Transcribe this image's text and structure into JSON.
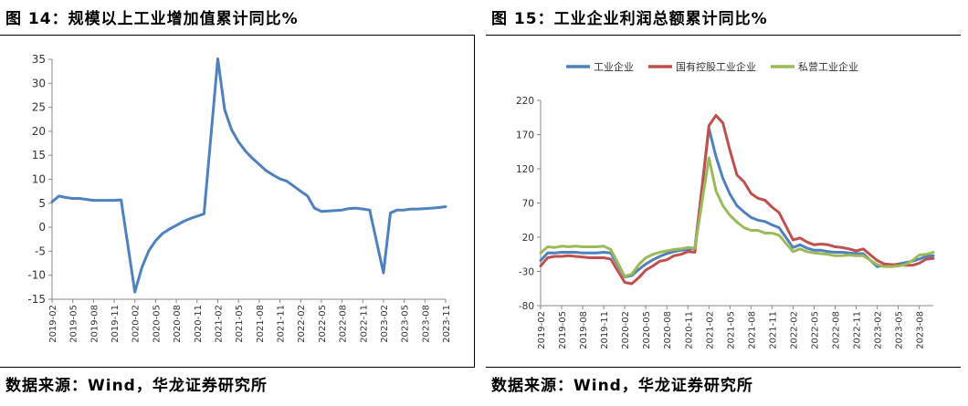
{
  "left": {
    "title": "图 14：规模以上工业增加值累计同比%",
    "source": "数据来源：Wind，华龙证券研究所",
    "chart_data": {
      "type": "line",
      "ylim": [
        -15,
        35
      ],
      "yticks": [
        -15,
        -10,
        -5,
        0,
        5,
        10,
        15,
        20,
        25,
        30,
        35
      ],
      "x_tick_labels": [
        "2019-02",
        "2019-05",
        "2019-08",
        "2019-11",
        "2020-02",
        "2020-05",
        "2020-08",
        "2020-11",
        "2021-02",
        "2021-05",
        "2021-08",
        "2021-11",
        "2022-02",
        "2022-05",
        "2022-08",
        "2022-11",
        "2023-02",
        "2023-05",
        "2023-08",
        "2023-11"
      ],
      "series": [
        {
          "color": "#4f81bd",
          "x": [
            "2019-02",
            "2019-03",
            "2019-04",
            "2019-05",
            "2019-06",
            "2019-07",
            "2019-08",
            "2019-09",
            "2019-10",
            "2019-11",
            "2019-12",
            "2020-02",
            "2020-03",
            "2020-04",
            "2020-05",
            "2020-06",
            "2020-07",
            "2020-08",
            "2020-09",
            "2020-10",
            "2020-11",
            "2020-12",
            "2021-02",
            "2021-03",
            "2021-04",
            "2021-05",
            "2021-06",
            "2021-07",
            "2021-08",
            "2021-09",
            "2021-10",
            "2021-11",
            "2021-12",
            "2022-02",
            "2022-03",
            "2022-04",
            "2022-05",
            "2022-06",
            "2022-07",
            "2022-08",
            "2022-09",
            "2022-10",
            "2022-11",
            "2022-12",
            "2023-02",
            "2023-03",
            "2023-04",
            "2023-05",
            "2023-06",
            "2023-07",
            "2023-08",
            "2023-09",
            "2023-10",
            "2023-11"
          ],
          "values": [
            5.3,
            6.5,
            6.2,
            6.0,
            6.0,
            5.8,
            5.6,
            5.6,
            5.6,
            5.6,
            5.7,
            -13.5,
            -8.4,
            -4.9,
            -2.8,
            -1.3,
            -0.4,
            0.4,
            1.2,
            1.8,
            2.3,
            2.8,
            35.1,
            24.5,
            20.3,
            17.8,
            15.9,
            14.4,
            13.1,
            11.8,
            10.9,
            10.1,
            9.6,
            7.5,
            6.5,
            4.0,
            3.3,
            3.4,
            3.5,
            3.6,
            3.9,
            4.0,
            3.8,
            3.6,
            -9.5,
            3.0,
            3.6,
            3.6,
            3.8,
            3.8,
            3.9,
            4.0,
            4.1,
            4.3
          ]
        }
      ]
    }
  },
  "right": {
    "title": "图 15：工业企业利润总额累计同比%",
    "source": "数据来源：Wind，华龙证券研究所",
    "chart_data": {
      "type": "line",
      "ylim": [
        -80,
        220
      ],
      "yticks": [
        -80,
        -30,
        20,
        70,
        120,
        170,
        220
      ],
      "legend_position": "top",
      "x_tick_labels": [
        "2019-02",
        "2019-05",
        "2019-08",
        "2019-11",
        "2020-02",
        "2020-05",
        "2020-08",
        "2020-11",
        "2021-02",
        "2021-05",
        "2021-08",
        "2021-11",
        "2022-02",
        "2022-05",
        "2022-08",
        "2022-11",
        "2023-02",
        "2023-05",
        "2023-08"
      ],
      "x": [
        "2019-02",
        "2019-03",
        "2019-04",
        "2019-05",
        "2019-06",
        "2019-07",
        "2019-08",
        "2019-09",
        "2019-10",
        "2019-11",
        "2019-12",
        "2020-02",
        "2020-03",
        "2020-04",
        "2020-05",
        "2020-06",
        "2020-07",
        "2020-08",
        "2020-09",
        "2020-10",
        "2020-11",
        "2020-12",
        "2021-02",
        "2021-03",
        "2021-04",
        "2021-05",
        "2021-06",
        "2021-07",
        "2021-08",
        "2021-09",
        "2021-10",
        "2021-11",
        "2021-12",
        "2022-02",
        "2022-03",
        "2022-04",
        "2022-05",
        "2022-06",
        "2022-07",
        "2022-08",
        "2022-09",
        "2022-10",
        "2022-11",
        "2022-12",
        "2023-02",
        "2023-03",
        "2023-04",
        "2023-05",
        "2023-06",
        "2023-07",
        "2023-08",
        "2023-09",
        "2023-10"
      ],
      "series": [
        {
          "name": "工业企业",
          "color": "#4f81bd",
          "values": [
            -14,
            -3,
            -3,
            -2,
            -2,
            -2,
            -3,
            -3,
            -3,
            -2,
            -3,
            -38,
            -36,
            -27,
            -19,
            -13,
            -8,
            -4,
            -1,
            1,
            2,
            4,
            179,
            138,
            106,
            83,
            66,
            57,
            49,
            45,
            43,
            38,
            34,
            5,
            9,
            4,
            1,
            1,
            -1,
            -2,
            -2,
            -3,
            -4,
            -4,
            -23,
            -21,
            -21,
            -19,
            -17,
            -15,
            -12,
            -8,
            -7
          ]
        },
        {
          "name": "国有控股工业企业",
          "color": "#c0504d",
          "values": [
            -22,
            -10,
            -8,
            -8,
            -7,
            -8,
            -9,
            -10,
            -10,
            -10,
            -12,
            -46,
            -48,
            -39,
            -28,
            -22,
            -15,
            -13,
            -7,
            -5,
            -1,
            -2,
            183,
            198,
            187,
            147,
            111,
            101,
            84,
            77,
            74,
            64,
            56,
            16,
            19,
            13,
            9,
            10,
            9,
            6,
            5,
            3,
            0,
            3,
            -14,
            -19,
            -20,
            -20,
            -21,
            -21,
            -18,
            -12,
            -11
          ]
        },
        {
          "name": "私营工业企业",
          "color": "#9bbb59",
          "values": [
            -3,
            6,
            5,
            7,
            6,
            7,
            6,
            6,
            6,
            7,
            2,
            -37,
            -34,
            -20,
            -10,
            -5,
            -2,
            0,
            2,
            3,
            5,
            4,
            136,
            88,
            66,
            52,
            42,
            34,
            30,
            30,
            26,
            26,
            23,
            -1,
            3,
            -1,
            -3,
            -4,
            -5,
            -7,
            -7,
            -6,
            -7,
            -7,
            -20,
            -23,
            -23,
            -22,
            -20,
            -14,
            -6,
            -5,
            -2
          ]
        }
      ]
    }
  }
}
